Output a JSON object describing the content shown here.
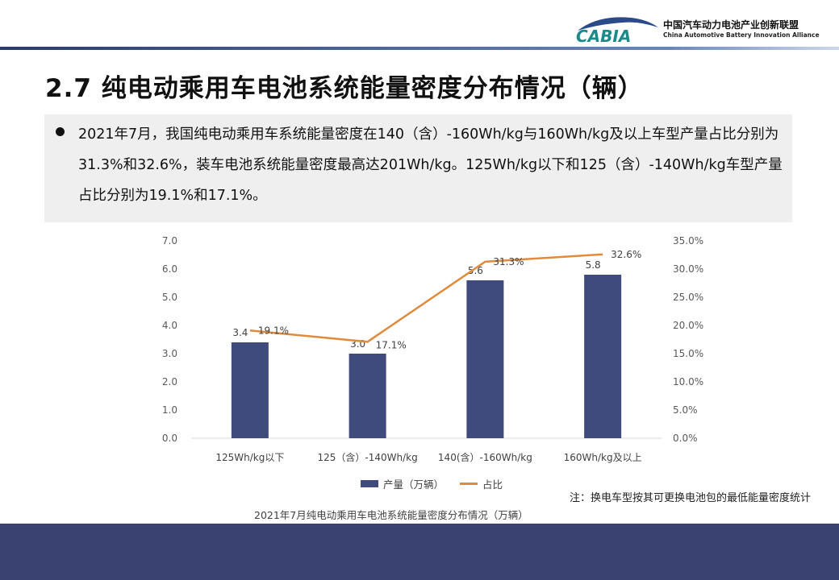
{
  "header": {
    "logo_text": "CABIA",
    "org_cn": "中国汽车动力电池产业创新联盟",
    "org_en": "China Automotive Battery Innovation Alliance"
  },
  "title": "2.7 纯电动乘用车电池系统能量密度分布情况（辆）",
  "summary": "2021年7月，我国纯电动乘用车系统能量密度在140（含）-160Wh/kg与160Wh/kg及以上车型产量占比分别为31.3%和32.6%，装车电池系统能量密度最高达201Wh/kg。125Wh/kg以下和125（含）-140Wh/kg车型产量占比分别为19.1%和17.1%。",
  "chart_data": {
    "type": "bar+line",
    "title": "2021年7月纯电动乘用车电池系统能量密度分布情况（万辆）",
    "categories": [
      "125Wh/kg以下",
      "125（含）-140Wh/kg",
      "140(含）-160Wh/kg",
      "160Wh/kg及以上"
    ],
    "series": [
      {
        "name": "产量（万辆）",
        "type": "bar",
        "axis": "left",
        "values": [
          3.4,
          3.0,
          5.6,
          5.8
        ],
        "labels": [
          "3.4",
          "3.0",
          "5.6",
          "5.8"
        ],
        "color": "#3f4a7d"
      },
      {
        "name": "占比",
        "type": "line",
        "axis": "right",
        "values": [
          19.1,
          17.1,
          31.3,
          32.6
        ],
        "labels": [
          "19.1%",
          "17.1%",
          "31.3%",
          "32.6%"
        ],
        "color": "#e08a3c"
      }
    ],
    "ylim_left": [
      0,
      7
    ],
    "yticks_left": [
      "0.0",
      "1.0",
      "2.0",
      "3.0",
      "4.0",
      "5.0",
      "6.0",
      "7.0"
    ],
    "ylim_right": [
      0,
      35
    ],
    "yticks_right": [
      "0.0%",
      "5.0%",
      "10.0%",
      "15.0%",
      "20.0%",
      "25.0%",
      "30.0%",
      "35.0%"
    ],
    "grid": false,
    "legend": "bottom"
  },
  "note": "注：换电车型按其可更换电池包的最低能量密度统计"
}
